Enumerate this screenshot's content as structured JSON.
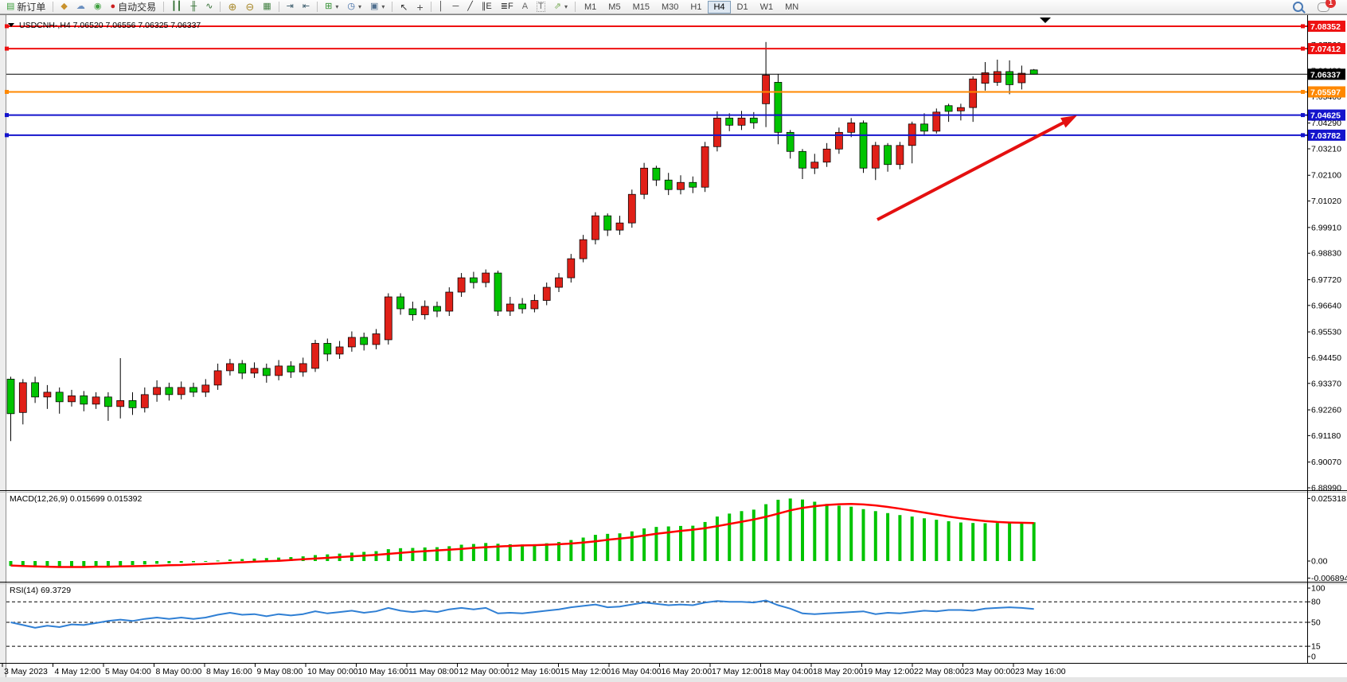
{
  "toolbar": {
    "new_order_label": "新订单",
    "autotrade_label": "自动交易",
    "timeframes": [
      "M1",
      "M5",
      "M15",
      "M30",
      "H1",
      "H4",
      "D1",
      "W1",
      "MN"
    ],
    "active_timeframe": "H4",
    "notification_count": "1",
    "icons": {
      "new_order": "▤",
      "history": "◆",
      "publish": "☁",
      "signals": "◉",
      "autotrade": "●",
      "bars": "┃┃",
      "candles": "╫",
      "linechart": "∿",
      "zoom_in": "⊕",
      "zoom_out": "⊖",
      "tile": "▦",
      "autoscroll": "⇥",
      "shift": "⇤",
      "indicators": "⊞",
      "periods": "◷",
      "templates": "▣",
      "cursor": "↖",
      "crosshair": "+",
      "vline": "│",
      "hline": "─",
      "tline": "╱",
      "channel": "∥E",
      "fibo": "≣F",
      "text": "A",
      "label": "T",
      "shapes": "⇗",
      "dropdown": "▾"
    }
  },
  "chart_data": {
    "type": "candlestick",
    "symbol_info": "USDCNH-,H4  7.06520 7.06556 7.06325 7.06337",
    "ohlc": {
      "open": "7.06520",
      "high": "7.06556",
      "low": "7.06325",
      "close": "7.06337"
    },
    "up_color": "#e02018",
    "down_color": "#00c400",
    "wick_color": "#000000",
    "ylim": {
      "top": 7.08784,
      "bottom": 6.88923
    },
    "price_ticks": [
      "7.07560",
      "7.06480",
      "7.05400",
      "7.04290",
      "7.03210",
      "7.02100",
      "7.01020",
      "6.99910",
      "6.98830",
      "6.97720",
      "6.96640",
      "6.95530",
      "6.94450",
      "6.93370",
      "6.92260",
      "6.91180",
      "6.90070",
      "6.88990"
    ],
    "levels": [
      {
        "label": "7.08352",
        "price": 7.08352,
        "color": "#ee1111",
        "kind": "resistance-line"
      },
      {
        "label": "7.07412",
        "price": 7.07412,
        "color": "#ee1111",
        "kind": "resistance-line"
      },
      {
        "label": "7.06337",
        "price": 7.06337,
        "color": "#000000",
        "kind": "current-price-line"
      },
      {
        "label": "7.05597",
        "price": 7.05597,
        "color": "#ff8800",
        "kind": "pivot-line"
      },
      {
        "label": "7.04625",
        "price": 7.04625,
        "color": "#1414cc",
        "kind": "support-line"
      },
      {
        "label": "7.03782",
        "price": 7.03782,
        "color": "#1414cc",
        "kind": "support-line"
      }
    ],
    "x_labels": [
      "3 May 2023",
      "4 May 12:00",
      "5 May 04:00",
      "8 May 00:00",
      "8 May 16:00",
      "9 May 08:00",
      "10 May 00:00",
      "10 May 16:00",
      "11 May 08:00",
      "12 May 00:00",
      "12 May 16:00",
      "15 May 12:00",
      "16 May 04:00",
      "16 May 20:00",
      "17 May 12:00",
      "18 May 04:00",
      "18 May 20:00",
      "19 May 12:00",
      "22 May 08:00",
      "23 May 00:00",
      "23 May 16:00"
    ],
    "candles": [
      [
        6.9355,
        6.9365,
        6.9095,
        6.921
      ],
      [
        6.9215,
        6.9355,
        6.9165,
        6.934
      ],
      [
        6.934,
        6.9365,
        6.9255,
        6.928
      ],
      [
        6.928,
        6.933,
        6.923,
        6.93
      ],
      [
        6.93,
        6.932,
        6.921,
        6.926
      ],
      [
        6.926,
        6.931,
        6.924,
        6.9285
      ],
      [
        6.9285,
        6.9305,
        6.922,
        6.925
      ],
      [
        6.925,
        6.93,
        6.923,
        6.928
      ],
      [
        6.928,
        6.93,
        6.918,
        6.924
      ],
      [
        6.924,
        6.9443,
        6.919,
        6.9265
      ],
      [
        6.9265,
        6.93,
        6.9205,
        6.9235
      ],
      [
        6.9235,
        6.932,
        6.9215,
        6.929
      ],
      [
        6.929,
        6.935,
        6.926,
        6.932
      ],
      [
        6.932,
        6.934,
        6.9265,
        6.929
      ],
      [
        6.929,
        6.9345,
        6.927,
        6.932
      ],
      [
        6.932,
        6.934,
        6.928,
        6.93
      ],
      [
        6.93,
        6.9355,
        6.928,
        6.933
      ],
      [
        6.933,
        6.942,
        6.931,
        6.939
      ],
      [
        6.939,
        6.944,
        6.937,
        6.942
      ],
      [
        6.942,
        6.9435,
        6.9355,
        6.938
      ],
      [
        6.938,
        6.9425,
        6.936,
        6.94
      ],
      [
        6.94,
        6.942,
        6.934,
        6.937
      ],
      [
        6.937,
        6.9435,
        6.935,
        6.941
      ],
      [
        6.941,
        6.943,
        6.936,
        6.9385
      ],
      [
        6.9385,
        6.9445,
        6.9365,
        6.942
      ],
      [
        6.94,
        6.952,
        6.9385,
        6.9505
      ],
      [
        6.9505,
        6.9525,
        6.943,
        6.946
      ],
      [
        6.946,
        6.9515,
        6.944,
        6.949
      ],
      [
        6.949,
        6.9555,
        6.947,
        6.953
      ],
      [
        6.953,
        6.955,
        6.9475,
        6.95
      ],
      [
        6.95,
        6.9565,
        6.948,
        6.9545
      ],
      [
        6.952,
        6.9715,
        6.95,
        6.97
      ],
      [
        6.97,
        6.9715,
        6.9625,
        6.965
      ],
      [
        6.965,
        6.968,
        6.96,
        6.9625
      ],
      [
        6.9625,
        6.9685,
        6.9605,
        6.966
      ],
      [
        6.966,
        6.968,
        6.9615,
        6.964
      ],
      [
        6.964,
        6.974,
        6.962,
        6.972
      ],
      [
        6.972,
        6.98,
        6.97,
        6.978
      ],
      [
        6.978,
        6.9805,
        6.9735,
        6.976
      ],
      [
        6.976,
        6.9815,
        6.974,
        6.98
      ],
      [
        6.98,
        6.981,
        6.962,
        6.964
      ],
      [
        6.964,
        6.97,
        6.962,
        6.967
      ],
      [
        6.967,
        6.9695,
        6.963,
        6.965
      ],
      [
        6.965,
        6.971,
        6.9635,
        6.9685
      ],
      [
        6.9685,
        6.976,
        6.9665,
        6.974
      ],
      [
        6.974,
        6.98,
        6.972,
        6.978
      ],
      [
        6.978,
        6.988,
        6.976,
        6.986
      ],
      [
        6.986,
        6.996,
        6.9845,
        6.994
      ],
      [
        6.994,
        7.0055,
        6.992,
        7.004
      ],
      [
        7.004,
        7.005,
        6.9955,
        6.998
      ],
      [
        6.998,
        7.004,
        6.996,
        7.001
      ],
      [
        7.001,
        7.015,
        6.999,
        7.013
      ],
      [
        7.013,
        7.0262,
        7.011,
        7.024
      ],
      [
        7.024,
        7.025,
        7.0165,
        7.019
      ],
      [
        7.019,
        7.022,
        7.0127,
        7.015
      ],
      [
        7.015,
        7.021,
        7.013,
        7.018
      ],
      [
        7.018,
        7.0205,
        7.0135,
        7.016
      ],
      [
        7.016,
        7.035,
        7.014,
        7.033
      ],
      [
        7.033,
        7.0478,
        7.031,
        7.045
      ],
      [
        7.045,
        7.047,
        7.0395,
        7.042
      ],
      [
        7.042,
        7.048,
        7.04,
        7.045
      ],
      [
        7.045,
        7.0475,
        7.0405,
        7.043
      ],
      [
        7.051,
        7.0769,
        7.0412,
        7.063
      ],
      [
        7.06,
        7.0635,
        7.034,
        7.039
      ],
      [
        7.039,
        7.04,
        7.028,
        7.031
      ],
      [
        7.031,
        7.032,
        7.0194,
        7.024
      ],
      [
        7.024,
        7.03,
        7.0215,
        7.0265
      ],
      [
        7.0265,
        7.0345,
        7.0245,
        7.032
      ],
      [
        7.032,
        7.041,
        7.03,
        7.039
      ],
      [
        7.039,
        7.045,
        7.037,
        7.043
      ],
      [
        7.043,
        7.044,
        7.022,
        7.024
      ],
      [
        7.024,
        7.035,
        7.019,
        7.0335
      ],
      [
        7.0335,
        7.0345,
        7.0225,
        7.0255
      ],
      [
        7.0255,
        7.035,
        7.0235,
        7.0335
      ],
      [
        7.0335,
        7.0435,
        7.026,
        7.0425
      ],
      [
        7.0425,
        7.047,
        7.0375,
        7.0395
      ],
      [
        7.0395,
        7.049,
        7.0385,
        7.0475
      ],
      [
        7.0502,
        7.051,
        7.0434,
        7.0478
      ],
      [
        7.048,
        7.051,
        7.044,
        7.0494
      ],
      [
        7.0494,
        7.0625,
        7.0434,
        7.0614
      ],
      [
        7.0596,
        7.0685,
        7.0565,
        7.064
      ],
      [
        7.06,
        7.0695,
        7.0585,
        7.0645
      ],
      [
        7.0645,
        7.0692,
        7.055,
        7.059
      ],
      [
        7.0598,
        7.067,
        7.057,
        7.0638
      ],
      [
        7.0652,
        7.06556,
        7.06325,
        7.06337
      ]
    ],
    "indicators": [
      {
        "name": "MACD",
        "label": "MACD(12,26,9) 0.015699 0.015392",
        "main_value": 0.015699,
        "signal_value": 0.015392,
        "axis_labels": [
          "0.025318",
          "0.00",
          "-0.006894"
        ],
        "axis_values": [
          0.025318,
          0,
          -0.006894
        ],
        "histogram_color": "#00c400",
        "signal_color": "#ff0000",
        "histogram": [
          -0.002,
          -0.0024,
          -0.0026,
          -0.0025,
          -0.0026,
          -0.0024,
          -0.0023,
          -0.0021,
          -0.002,
          -0.0018,
          -0.0016,
          -0.0014,
          -0.0011,
          -0.0009,
          -0.0007,
          -0.0005,
          -0.0002,
          0.0002,
          0.0006,
          0.0008,
          0.001,
          0.0012,
          0.0014,
          0.0016,
          0.0019,
          0.0024,
          0.0027,
          0.003,
          0.0034,
          0.0037,
          0.004,
          0.0048,
          0.0052,
          0.0053,
          0.0055,
          0.0056,
          0.006,
          0.0066,
          0.0069,
          0.0073,
          0.007,
          0.0068,
          0.0067,
          0.0068,
          0.0072,
          0.0077,
          0.0085,
          0.0095,
          0.0106,
          0.011,
          0.0112,
          0.012,
          0.0132,
          0.0138,
          0.014,
          0.0142,
          0.0143,
          0.0158,
          0.018,
          0.0192,
          0.0202,
          0.0208,
          0.023,
          0.0248,
          0.0253,
          0.0249,
          0.024,
          0.0231,
          0.0224,
          0.022,
          0.021,
          0.0202,
          0.0194,
          0.0186,
          0.018,
          0.0173,
          0.0167,
          0.0161,
          0.0156,
          0.0154,
          0.0153,
          0.0154,
          0.0155,
          0.0156,
          0.0157
        ],
        "signal": [
          -0.0018,
          -0.002,
          -0.0022,
          -0.0023,
          -0.0024,
          -0.0024,
          -0.0024,
          -0.0023,
          -0.0023,
          -0.0022,
          -0.0021,
          -0.002,
          -0.0019,
          -0.0017,
          -0.0016,
          -0.0014,
          -0.0012,
          -0.001,
          -0.0007,
          -0.0005,
          -0.0003,
          -0.0001,
          0.0001,
          0.0004,
          0.0007,
          0.001,
          0.0013,
          0.0016,
          0.0019,
          0.0022,
          0.0025,
          0.0029,
          0.0033,
          0.0037,
          0.004,
          0.0043,
          0.0046,
          0.0049,
          0.0053,
          0.0056,
          0.0059,
          0.0061,
          0.0063,
          0.0064,
          0.0066,
          0.0068,
          0.0071,
          0.0075,
          0.008,
          0.0086,
          0.0091,
          0.0096,
          0.0103,
          0.011,
          0.0116,
          0.0122,
          0.0127,
          0.0133,
          0.0141,
          0.015,
          0.0159,
          0.0168,
          0.0179,
          0.0192,
          0.0205,
          0.0215,
          0.0222,
          0.0227,
          0.023,
          0.0231,
          0.0229,
          0.0225,
          0.0219,
          0.0212,
          0.0204,
          0.0196,
          0.0188,
          0.018,
          0.0173,
          0.0167,
          0.0162,
          0.0158,
          0.0156,
          0.0155,
          0.0154
        ]
      },
      {
        "name": "RSI",
        "label": "RSI(14) 69.3729",
        "value": 69.3729,
        "axis_labels": [
          "100",
          "80",
          "50",
          "15",
          "0"
        ],
        "axis_values": [
          100,
          80,
          50,
          15,
          0
        ],
        "dashed_levels": [
          80,
          50,
          15
        ],
        "line_color": "#2f7fd4",
        "series": [
          50,
          46,
          42,
          45,
          43,
          47,
          46,
          49,
          52,
          54,
          52,
          55,
          57,
          55,
          57,
          55,
          57,
          61,
          64,
          61,
          62,
          59,
          62,
          60,
          62,
          66,
          63,
          65,
          67,
          64,
          66,
          71,
          67,
          65,
          67,
          65,
          69,
          71,
          69,
          71,
          63,
          64,
          63,
          65,
          67,
          69,
          72,
          74,
          76,
          72,
          73,
          76,
          79,
          77,
          75,
          76,
          75,
          79,
          81,
          80,
          80,
          79,
          82,
          75,
          70,
          63,
          62,
          63,
          64,
          65,
          66,
          62,
          64,
          63,
          65,
          67,
          66,
          68,
          68,
          67,
          70,
          71,
          72,
          71,
          69.37
        ]
      }
    ],
    "trend_arrow": {
      "color": "#e41010"
    },
    "shift_marker_color": "#000000"
  }
}
